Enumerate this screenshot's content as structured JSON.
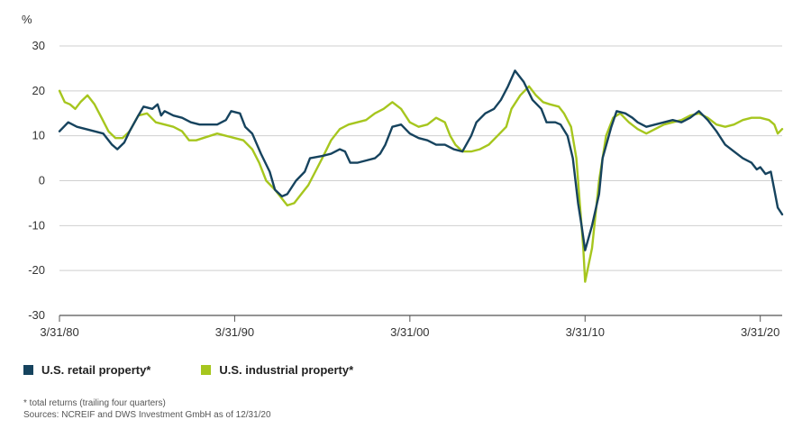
{
  "chart_data": {
    "type": "line",
    "unit_label": "%",
    "ylim": [
      -30,
      30
    ],
    "y_ticks": [
      30,
      20,
      10,
      0,
      -10,
      -20,
      -30
    ],
    "x_range": [
      1980.0,
      2021.25
    ],
    "x_ticks": [
      {
        "value": 1980.0,
        "label": "3/31/80"
      },
      {
        "value": 1990.0,
        "label": "3/31/90"
      },
      {
        "value": 2000.0,
        "label": "3/31/00"
      },
      {
        "value": 2010.0,
        "label": "3/31/10"
      },
      {
        "value": 2020.0,
        "label": "3/31/20"
      }
    ],
    "grid": true,
    "series": [
      {
        "name": "U.S. retail property*",
        "color": "#16435e",
        "points": [
          [
            1980.0,
            11
          ],
          [
            1980.5,
            13
          ],
          [
            1981.0,
            12
          ],
          [
            1981.5,
            11.5
          ],
          [
            1982.0,
            11
          ],
          [
            1982.5,
            10.5
          ],
          [
            1983.0,
            8
          ],
          [
            1983.3,
            7
          ],
          [
            1983.7,
            8.5
          ],
          [
            1984.0,
            11
          ],
          [
            1984.5,
            14.5
          ],
          [
            1984.8,
            16.5
          ],
          [
            1985.3,
            16
          ],
          [
            1985.6,
            17
          ],
          [
            1985.8,
            14.5
          ],
          [
            1986.0,
            15.5
          ],
          [
            1986.5,
            14.5
          ],
          [
            1987.0,
            14
          ],
          [
            1987.5,
            13
          ],
          [
            1988.0,
            12.5
          ],
          [
            1988.5,
            12.5
          ],
          [
            1989.0,
            12.5
          ],
          [
            1989.5,
            13.5
          ],
          [
            1989.8,
            15.5
          ],
          [
            1990.3,
            15
          ],
          [
            1990.6,
            12
          ],
          [
            1991.0,
            10.5
          ],
          [
            1991.5,
            6
          ],
          [
            1992.0,
            2
          ],
          [
            1992.3,
            -2
          ],
          [
            1992.7,
            -3.5
          ],
          [
            1993.0,
            -3
          ],
          [
            1993.5,
            0
          ],
          [
            1994.0,
            2
          ],
          [
            1994.3,
            5
          ],
          [
            1995.0,
            5.5
          ],
          [
            1995.5,
            6
          ],
          [
            1996.0,
            7
          ],
          [
            1996.3,
            6.5
          ],
          [
            1996.6,
            4
          ],
          [
            1997.0,
            4
          ],
          [
            1997.5,
            4.5
          ],
          [
            1998.0,
            5
          ],
          [
            1998.3,
            6
          ],
          [
            1998.6,
            8
          ],
          [
            1999.0,
            12
          ],
          [
            1999.5,
            12.5
          ],
          [
            2000.0,
            10.5
          ],
          [
            2000.5,
            9.5
          ],
          [
            2001.0,
            9
          ],
          [
            2001.5,
            8
          ],
          [
            2002.0,
            8
          ],
          [
            2002.5,
            7
          ],
          [
            2003.0,
            6.5
          ],
          [
            2003.5,
            10
          ],
          [
            2003.8,
            13
          ],
          [
            2004.3,
            15
          ],
          [
            2004.8,
            16
          ],
          [
            2005.2,
            18
          ],
          [
            2005.6,
            21
          ],
          [
            2006.0,
            24.5
          ],
          [
            2006.5,
            22
          ],
          [
            2007.0,
            18
          ],
          [
            2007.5,
            16
          ],
          [
            2007.8,
            13
          ],
          [
            2008.3,
            13
          ],
          [
            2008.6,
            12.5
          ],
          [
            2009.0,
            10
          ],
          [
            2009.3,
            5
          ],
          [
            2009.6,
            -5
          ],
          [
            2009.8,
            -10
          ],
          [
            2010.0,
            -15.5
          ],
          [
            2010.4,
            -10
          ],
          [
            2010.8,
            -3
          ],
          [
            2011.0,
            5
          ],
          [
            2011.5,
            12
          ],
          [
            2011.8,
            15.5
          ],
          [
            2012.3,
            15
          ],
          [
            2012.7,
            14
          ],
          [
            2013.0,
            13
          ],
          [
            2013.5,
            12
          ],
          [
            2014.0,
            12.5
          ],
          [
            2014.5,
            13
          ],
          [
            2015.0,
            13.5
          ],
          [
            2015.5,
            13
          ],
          [
            2016.0,
            14
          ],
          [
            2016.5,
            15.5
          ],
          [
            2017.0,
            13.5
          ],
          [
            2017.5,
            11
          ],
          [
            2018.0,
            8
          ],
          [
            2018.5,
            6.5
          ],
          [
            2019.0,
            5
          ],
          [
            2019.5,
            4
          ],
          [
            2019.8,
            2.5
          ],
          [
            2020.0,
            3
          ],
          [
            2020.3,
            1.5
          ],
          [
            2020.6,
            2
          ],
          [
            2020.8,
            -2
          ],
          [
            2021.0,
            -6
          ],
          [
            2021.25,
            -7.5
          ]
        ]
      },
      {
        "name": "U.S. industrial property*",
        "color": "#a6c61e",
        "points": [
          [
            1980.0,
            20
          ],
          [
            1980.3,
            17.5
          ],
          [
            1980.6,
            17
          ],
          [
            1980.9,
            16
          ],
          [
            1981.2,
            17.5
          ],
          [
            1981.6,
            19
          ],
          [
            1982.0,
            17
          ],
          [
            1982.4,
            14
          ],
          [
            1982.8,
            11
          ],
          [
            1983.2,
            9.5
          ],
          [
            1983.6,
            9.5
          ],
          [
            1984.0,
            11
          ],
          [
            1984.5,
            14.5
          ],
          [
            1985.0,
            15
          ],
          [
            1985.5,
            13
          ],
          [
            1986.0,
            12.5
          ],
          [
            1986.5,
            12
          ],
          [
            1987.0,
            11
          ],
          [
            1987.4,
            9
          ],
          [
            1987.8,
            9
          ],
          [
            1988.2,
            9.5
          ],
          [
            1988.6,
            10
          ],
          [
            1989.0,
            10.5
          ],
          [
            1989.5,
            10
          ],
          [
            1990.0,
            9.5
          ],
          [
            1990.5,
            9
          ],
          [
            1991.0,
            7
          ],
          [
            1991.4,
            4
          ],
          [
            1991.8,
            0
          ],
          [
            1992.3,
            -2
          ],
          [
            1992.7,
            -4
          ],
          [
            1993.0,
            -5.5
          ],
          [
            1993.4,
            -5
          ],
          [
            1993.8,
            -3
          ],
          [
            1994.2,
            -1
          ],
          [
            1994.6,
            2
          ],
          [
            1995.0,
            5
          ],
          [
            1995.5,
            9
          ],
          [
            1996.0,
            11.5
          ],
          [
            1996.5,
            12.5
          ],
          [
            1997.0,
            13
          ],
          [
            1997.5,
            13.5
          ],
          [
            1998.0,
            15
          ],
          [
            1998.5,
            16
          ],
          [
            1999.0,
            17.5
          ],
          [
            1999.5,
            16
          ],
          [
            2000.0,
            13
          ],
          [
            2000.5,
            12
          ],
          [
            2001.0,
            12.5
          ],
          [
            2001.5,
            14
          ],
          [
            2002.0,
            13
          ],
          [
            2002.3,
            10
          ],
          [
            2002.6,
            8
          ],
          [
            2003.0,
            6.5
          ],
          [
            2003.5,
            6.5
          ],
          [
            2004.0,
            7
          ],
          [
            2004.5,
            8
          ],
          [
            2005.0,
            10
          ],
          [
            2005.5,
            12
          ],
          [
            2005.8,
            16
          ],
          [
            2006.3,
            19
          ],
          [
            2006.8,
            21
          ],
          [
            2007.2,
            19
          ],
          [
            2007.6,
            17.5
          ],
          [
            2008.0,
            17
          ],
          [
            2008.5,
            16.5
          ],
          [
            2008.8,
            15
          ],
          [
            2009.2,
            12
          ],
          [
            2009.5,
            5
          ],
          [
            2009.7,
            -5
          ],
          [
            2009.9,
            -15
          ],
          [
            2010.0,
            -22.5
          ],
          [
            2010.4,
            -15
          ],
          [
            2010.8,
            0
          ],
          [
            2011.2,
            10
          ],
          [
            2011.6,
            14
          ],
          [
            2012.0,
            15
          ],
          [
            2012.5,
            13
          ],
          [
            2013.0,
            11.5
          ],
          [
            2013.5,
            10.5
          ],
          [
            2014.0,
            11.5
          ],
          [
            2014.5,
            12.5
          ],
          [
            2015.0,
            13
          ],
          [
            2015.5,
            13.5
          ],
          [
            2016.0,
            14.5
          ],
          [
            2016.5,
            15
          ],
          [
            2017.0,
            14
          ],
          [
            2017.5,
            12.5
          ],
          [
            2018.0,
            12
          ],
          [
            2018.5,
            12.5
          ],
          [
            2019.0,
            13.5
          ],
          [
            2019.5,
            14
          ],
          [
            2020.0,
            14
          ],
          [
            2020.5,
            13.5
          ],
          [
            2020.8,
            12.5
          ],
          [
            2021.0,
            10.5
          ],
          [
            2021.25,
            11.5
          ]
        ]
      }
    ],
    "footnotes": [
      "* total returns (trailing four quarters)",
      "Sources: NCREIF and DWS Investment GmbH as of 12/31/20"
    ]
  }
}
